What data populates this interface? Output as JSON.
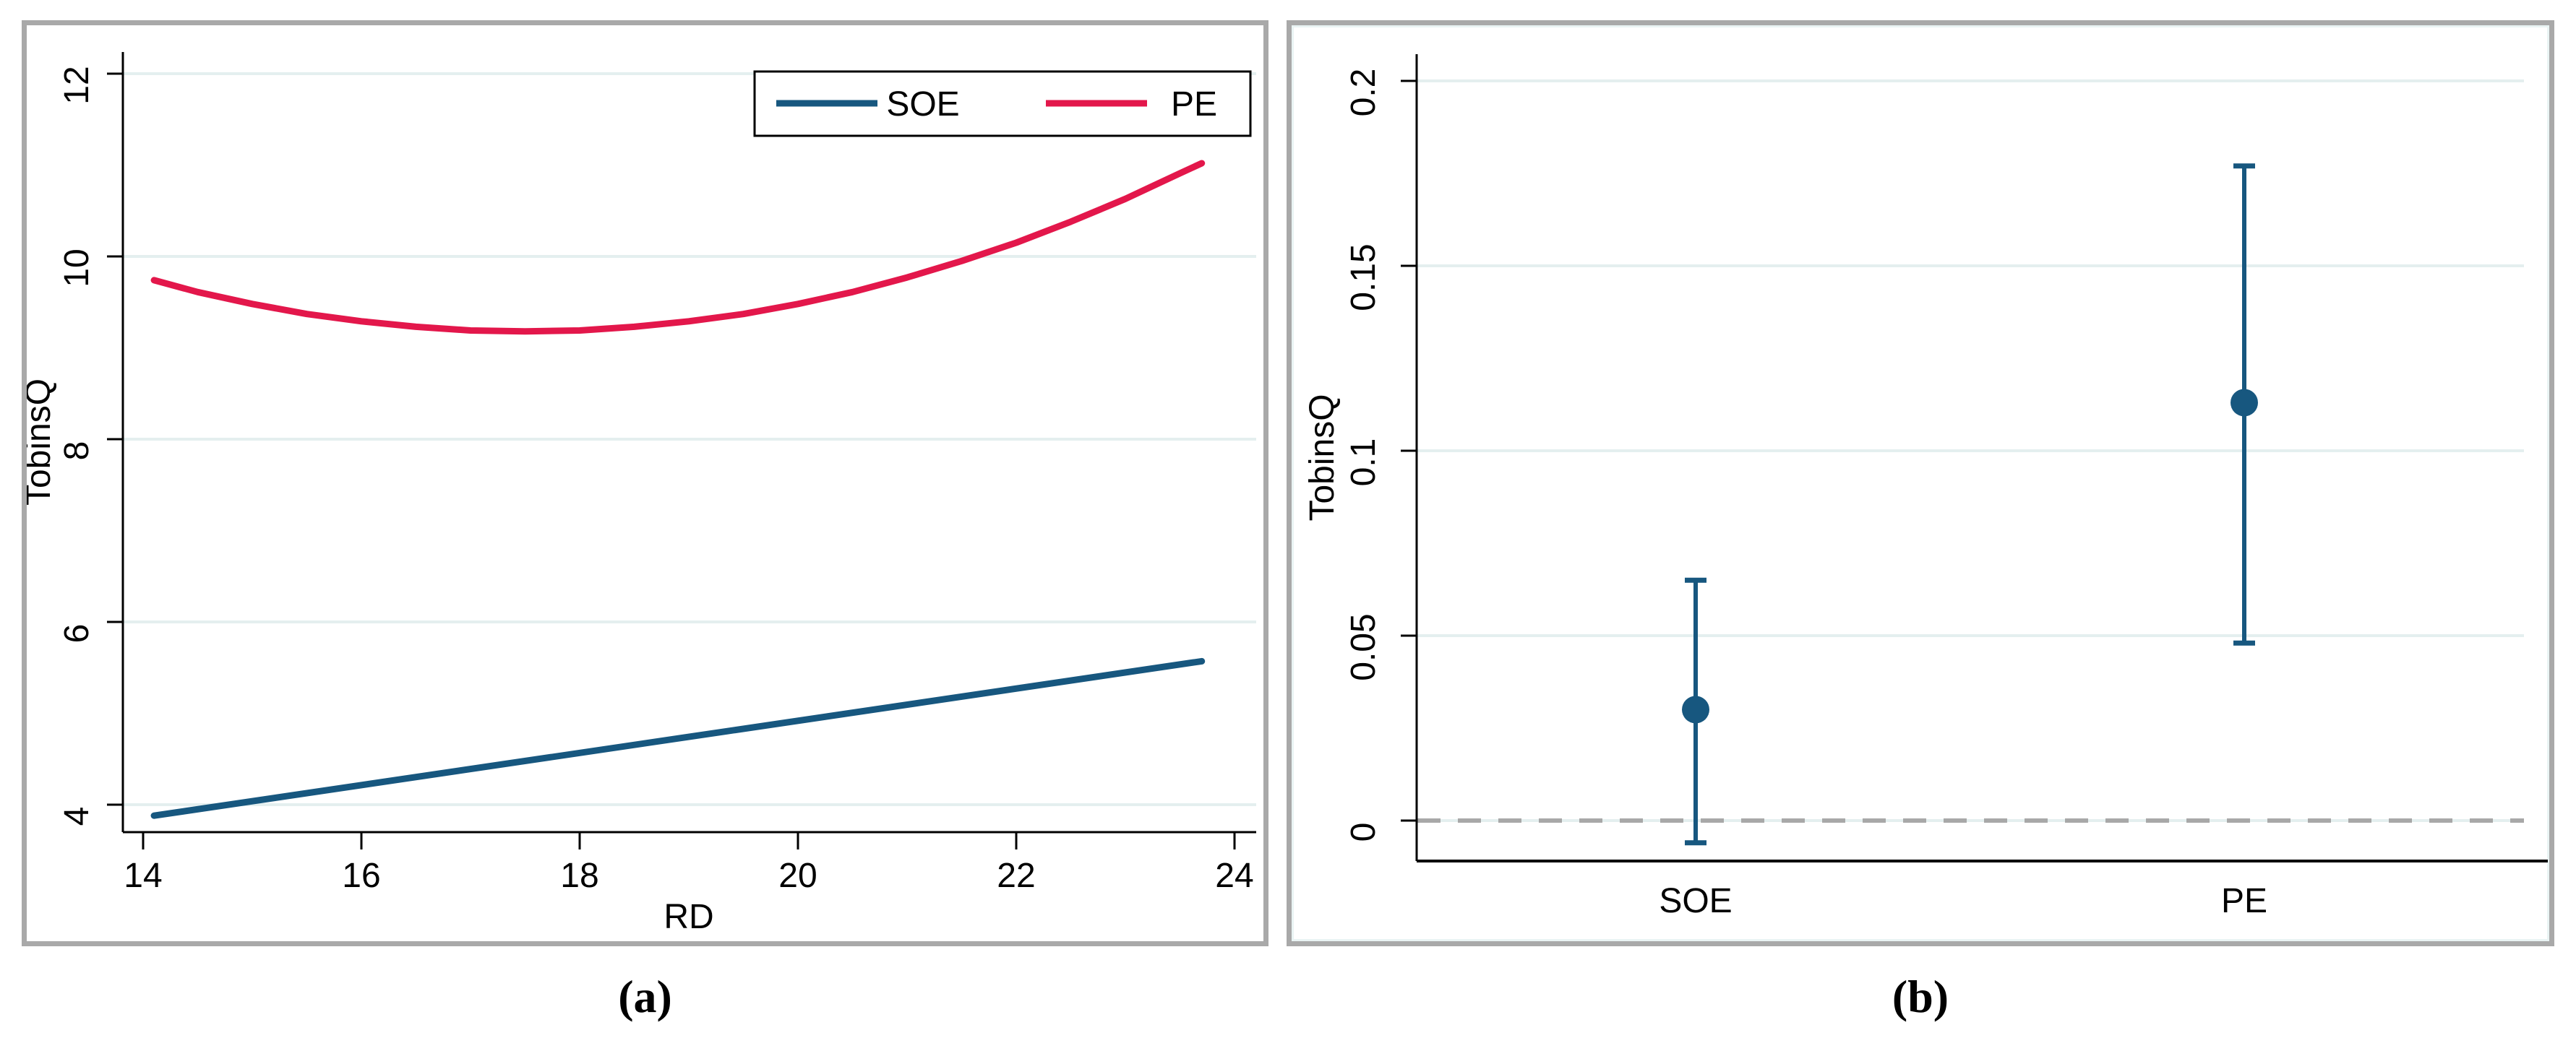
{
  "figure": {
    "caption_a": "(a)",
    "caption_b": "(b)"
  },
  "colors": {
    "navy": "#17577f",
    "crimson": "#e3174b",
    "gridline": "#e4efef",
    "axis": "#000000",
    "zero_line": "#a8a8a8",
    "panel_border": "#a9a9a9",
    "legend_border": "#000000",
    "text": "#000000",
    "background": "#ffffff"
  },
  "chart_data": [
    {
      "id": "panel-a",
      "type": "line",
      "title": "",
      "xlabel": "RD",
      "ylabel": "TobinsQ",
      "x_ticks": [
        14,
        16,
        18,
        20,
        22,
        24
      ],
      "y_ticks": [
        4,
        6,
        8,
        10,
        12
      ],
      "xlim": [
        13.8,
        24.2
      ],
      "ylim": [
        3.6,
        12.25
      ],
      "grid": true,
      "legend_position": "top-right",
      "legend": [
        "SOE",
        "PE"
      ],
      "series": [
        {
          "name": "SOE",
          "color": "#17577f",
          "x": [
            14.1,
            23.7
          ],
          "y": [
            3.88,
            5.57
          ]
        },
        {
          "name": "PE",
          "color": "#e3174b",
          "x": [
            14.1,
            14.5,
            15,
            15.5,
            16,
            16.5,
            17,
            17.5,
            18,
            18.5,
            19,
            19.5,
            20,
            20.5,
            21,
            21.5,
            22,
            22.5,
            23,
            23.5,
            23.7
          ],
          "y": [
            9.74,
            9.61,
            9.48,
            9.37,
            9.29,
            9.23,
            9.19,
            9.18,
            9.19,
            9.23,
            9.29,
            9.37,
            9.48,
            9.61,
            9.77,
            9.95,
            10.15,
            10.38,
            10.63,
            10.91,
            11.02
          ]
        }
      ]
    },
    {
      "id": "panel-b",
      "type": "scatter",
      "subtype": "coefficient-plot",
      "title": "",
      "xlabel": "",
      "ylabel": "TobinsQ",
      "categories": [
        "SOE",
        "PE"
      ],
      "estimates": [
        0.03,
        0.113
      ],
      "ci_low": [
        -0.006,
        0.048
      ],
      "ci_high": [
        0.065,
        0.177
      ],
      "y_ticks": [
        0,
        0.05,
        0.1,
        0.15,
        0.2
      ],
      "y_tick_labels": [
        "0",
        "0.05",
        "0.1",
        "0.15",
        "0.2"
      ],
      "ylim": [
        -0.011,
        0.207
      ],
      "grid": true,
      "zero_line": 0,
      "marker": "circle",
      "marker_color": "#17577f"
    }
  ]
}
